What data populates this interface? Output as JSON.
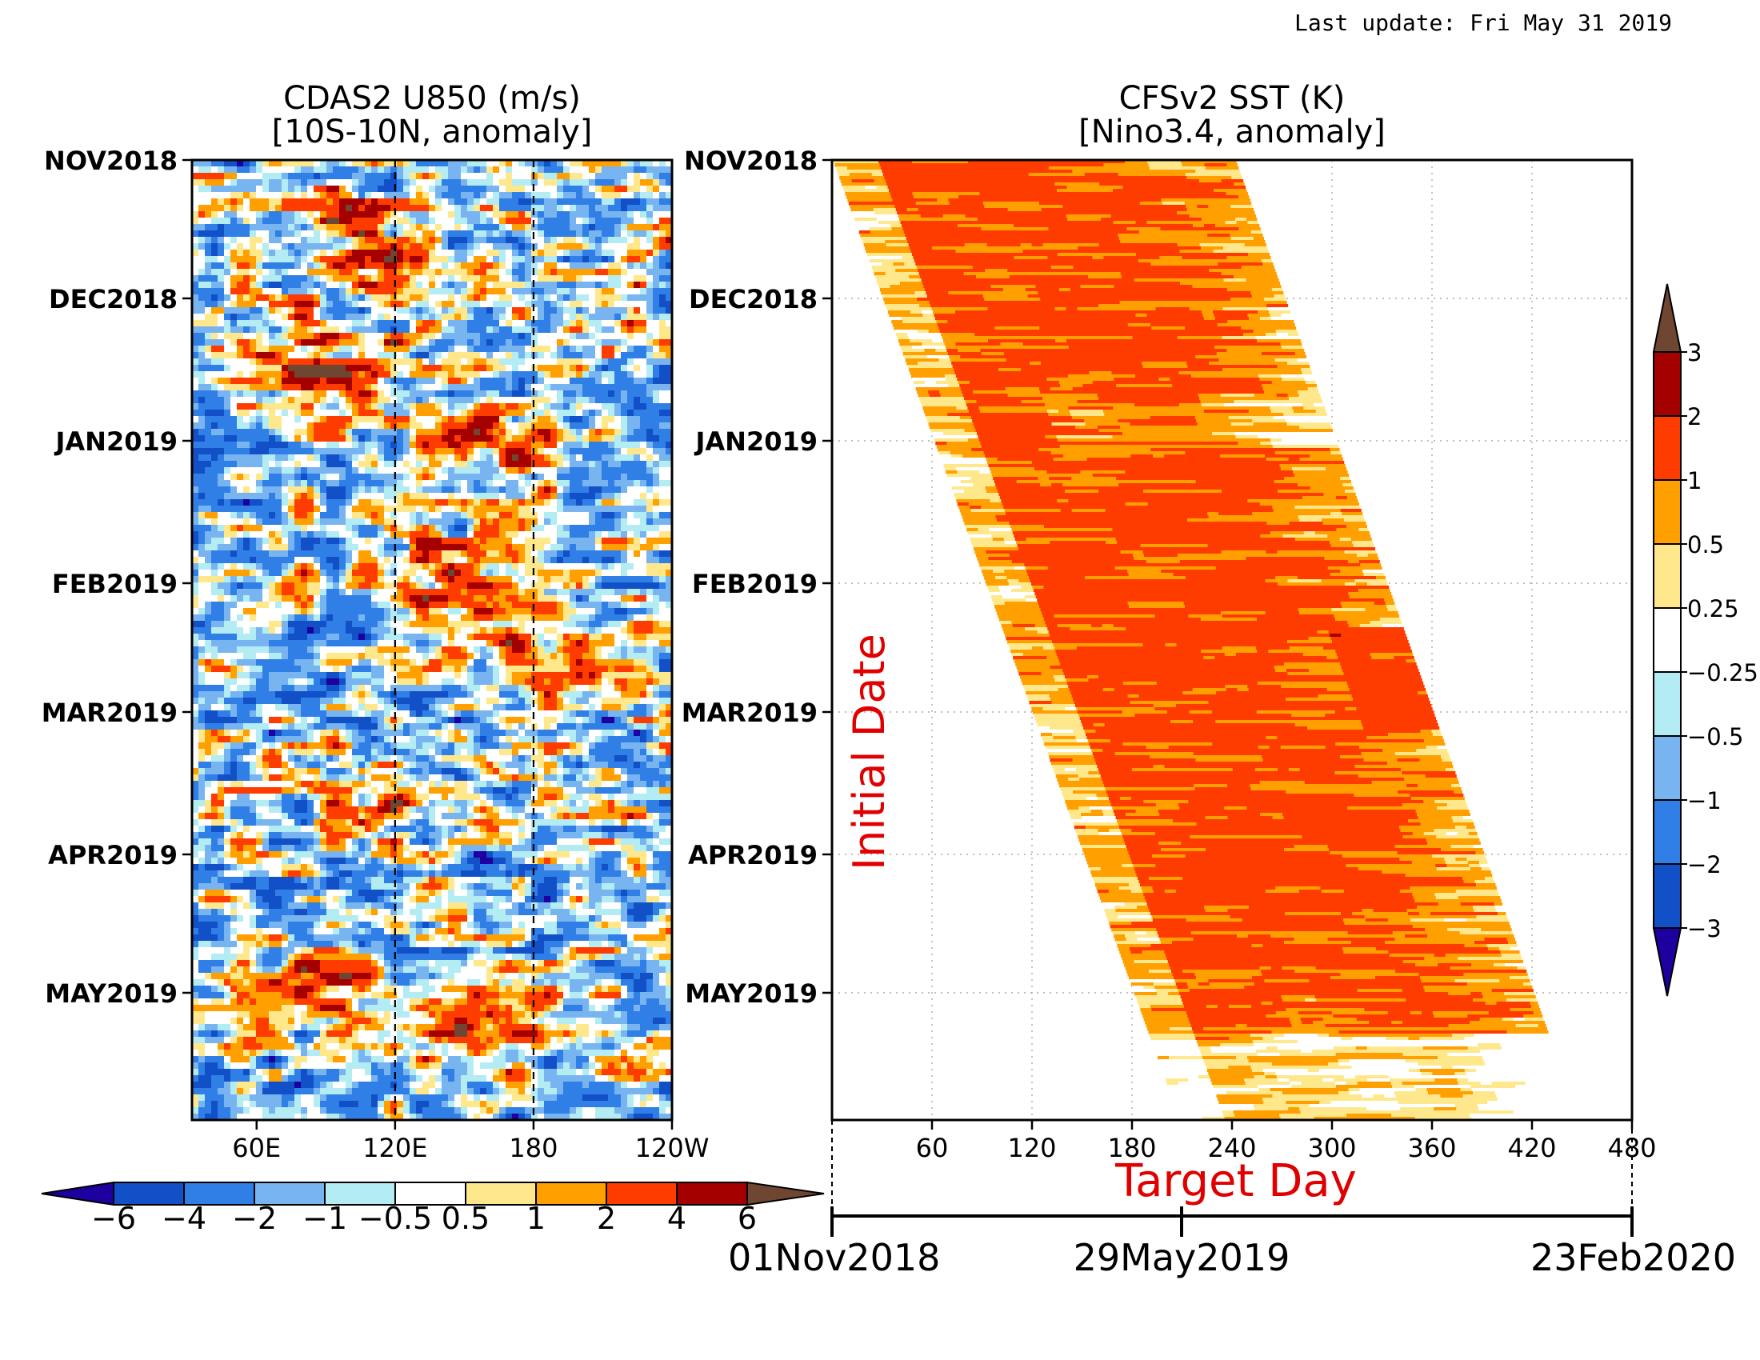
{
  "last_update": "Last update: Fri May 31 2019",
  "palette": {
    "anomaly": [
      "#1e00a0",
      "#1250c8",
      "#2f7fe6",
      "#78b4f0",
      "#b4ecf4",
      "#ffffff",
      "#ffe88c",
      "#ffa000",
      "#ff3c00",
      "#a50000",
      "#6e4632"
    ]
  },
  "chart_data": [
    {
      "type": "heatmap",
      "title": "CDAS2 U850 (m/s)",
      "subtitle": "[10S-10N, anomaly]",
      "x_ticks": [
        "60E",
        "120E",
        "180",
        "120W"
      ],
      "x_tick_values": [
        60,
        120,
        180,
        240
      ],
      "xlim": [
        32,
        240
      ],
      "y_ticks": [
        "NOV2018",
        "DEC2018",
        "JAN2019",
        "FEB2019",
        "MAR2019",
        "APR2019",
        "MAY2019"
      ],
      "reference_lines": [
        "120E",
        "180"
      ],
      "colorbar": {
        "orientation": "horizontal",
        "labels": [
          "-6",
          "-4",
          "-2",
          "-1",
          "-0.5",
          "0.5",
          "1",
          "2",
          "4",
          "6"
        ],
        "levels": [
          -6,
          -4,
          -2,
          -1,
          -0.5,
          0.5,
          1,
          2,
          4,
          6
        ]
      }
    },
    {
      "type": "heatmap",
      "title": "CFSv2 SST (K)",
      "subtitle": "[Nino3.4, anomaly]",
      "xlabel": "Target Day",
      "ylabel": "Initial Date",
      "x_ticks": [
        "60",
        "120",
        "180",
        "240",
        "300",
        "360",
        "420",
        "480"
      ],
      "x_tick_values": [
        60,
        120,
        180,
        240,
        300,
        360,
        420,
        480
      ],
      "xlim": [
        0,
        480
      ],
      "y_ticks": [
        "NOV2018",
        "DEC2018",
        "JAN2019",
        "FEB2019",
        "MAR2019",
        "APR2019",
        "MAY2019"
      ],
      "grid": true,
      "target_dates": [
        "01Nov2018",
        "29May2019",
        "23Feb2020"
      ],
      "colorbar": {
        "orientation": "vertical",
        "labels": [
          "3",
          "2",
          "1",
          "0.5",
          "0.25",
          "-0.25",
          "-0.5",
          "-1",
          "-2",
          "-3"
        ],
        "levels": [
          3,
          2,
          1,
          0.5,
          0.25,
          -0.25,
          -0.5,
          -1,
          -2,
          -3
        ]
      }
    }
  ]
}
